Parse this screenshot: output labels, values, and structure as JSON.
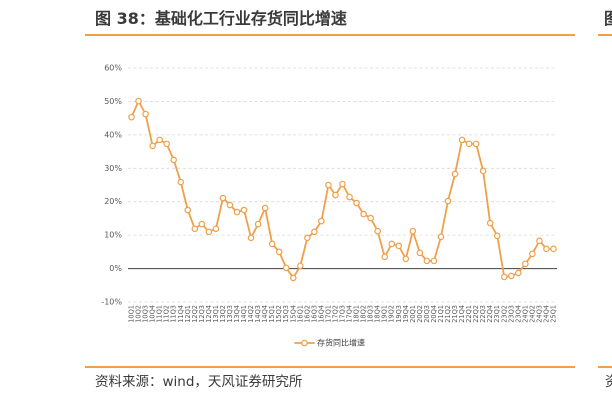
{
  "colors": {
    "accent": "#F0A04B",
    "text": "#3A3A3A",
    "axis_text": "#595959",
    "grid": "#D9D9D9",
    "zero_line": "#404040"
  },
  "figure": {
    "source": "资料来源：wind，天风证券研究所"
  },
  "adjacent_figure": {
    "caption_fragment": "图",
    "source_fragment": "资"
  },
  "chart_data": {
    "type": "line",
    "title": "图 38：基础化工行业存货同比增速",
    "categories": [
      "10Q1",
      "10Q2",
      "10Q3",
      "10Q4",
      "11Q1",
      "11Q2",
      "11Q3",
      "11Q4",
      "12Q1",
      "12Q2",
      "12Q3",
      "12Q4",
      "13Q1",
      "13Q2",
      "13Q3",
      "13Q4",
      "14Q1",
      "14Q2",
      "14Q3",
      "14Q4",
      "15Q1",
      "15Q2",
      "15Q3",
      "15Q4",
      "16Q1",
      "16Q2",
      "16Q3",
      "16Q4",
      "17Q1",
      "17Q2",
      "17Q3",
      "17Q4",
      "18Q1",
      "18Q2",
      "18Q3",
      "18Q4",
      "19Q1",
      "19Q2",
      "19Q3",
      "19Q4",
      "20Q1",
      "20Q2",
      "20Q3",
      "20Q4",
      "21Q1",
      "21Q2",
      "21Q3",
      "21Q4",
      "22Q1",
      "22Q2",
      "22Q3",
      "22Q4",
      "23Q1",
      "23Q2",
      "23Q3",
      "23Q4",
      "24Q1",
      "24Q2",
      "24Q3",
      "24Q4",
      "25Q1"
    ],
    "series": [
      {
        "name": "存货同比增速",
        "values": [
          45.3,
          50.1,
          46.2,
          36.7,
          38.5,
          37.3,
          32.5,
          25.9,
          17.5,
          11.9,
          13.3,
          11.0,
          11.9,
          21.1,
          19.0,
          16.9,
          17.5,
          9.2,
          13.3,
          18.1,
          7.4,
          5.0,
          0.2,
          -2.8,
          0.8,
          9.2,
          11.0,
          14.2,
          25.0,
          22.0,
          25.3,
          21.4,
          19.6,
          16.3,
          15.1,
          11.2,
          3.5,
          7.4,
          6.8,
          2.9,
          11.2,
          4.7,
          2.3,
          2.3,
          9.5,
          20.2,
          28.3,
          38.5,
          37.3,
          37.3,
          29.2,
          13.6,
          9.8,
          -2.5,
          -2.2,
          -1.3,
          1.4,
          4.4,
          8.3,
          5.9,
          5.9
        ]
      }
    ],
    "ylim": [
      -10,
      60
    ],
    "y_ticks": [
      -10,
      0,
      10,
      20,
      30,
      40,
      50,
      60
    ],
    "y_tick_labels": [
      "-10%",
      "0%",
      "10%",
      "20%",
      "30%",
      "40%",
      "50%",
      "60%"
    ],
    "grid": true,
    "legend": "bottom-center"
  }
}
